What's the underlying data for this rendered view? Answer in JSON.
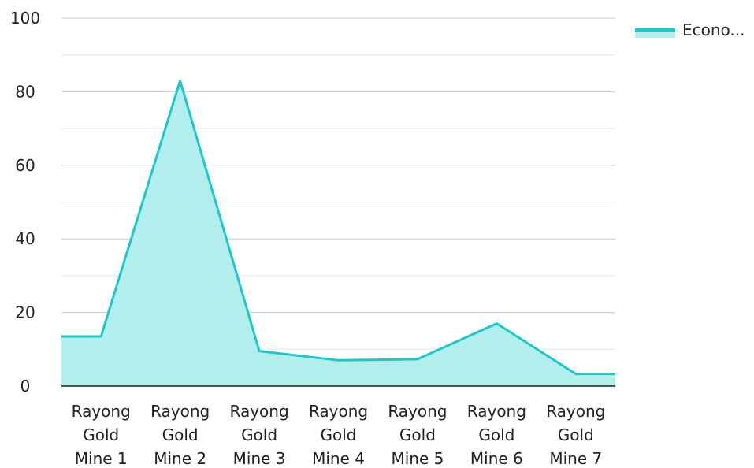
{
  "chart_data": {
    "type": "area",
    "categories": [
      [
        "Rayong",
        "Gold",
        "Mine 1"
      ],
      [
        "Rayong",
        "Gold",
        "Mine 2"
      ],
      [
        "Rayong",
        "Gold",
        "Mine 3"
      ],
      [
        "Rayong",
        "Gold",
        "Mine 4"
      ],
      [
        "Rayong",
        "Gold",
        "Mine 5"
      ],
      [
        "Rayong",
        "Gold",
        "Mine 6"
      ],
      [
        "Rayong",
        "Gold",
        "Mine 7"
      ]
    ],
    "series": [
      {
        "name": "Econo...",
        "values": [
          13.5,
          83,
          9.5,
          7,
          7.3,
          17,
          3.3
        ]
      }
    ],
    "ylim": [
      0,
      100
    ],
    "yticks": [
      0,
      20,
      40,
      60,
      80,
      100
    ],
    "grid": true,
    "legend_position": "top-right",
    "colors": {
      "line": "#1cc8c8",
      "fill": "#b2eeec",
      "grid": "#cccccc",
      "axis": "#222222"
    }
  }
}
